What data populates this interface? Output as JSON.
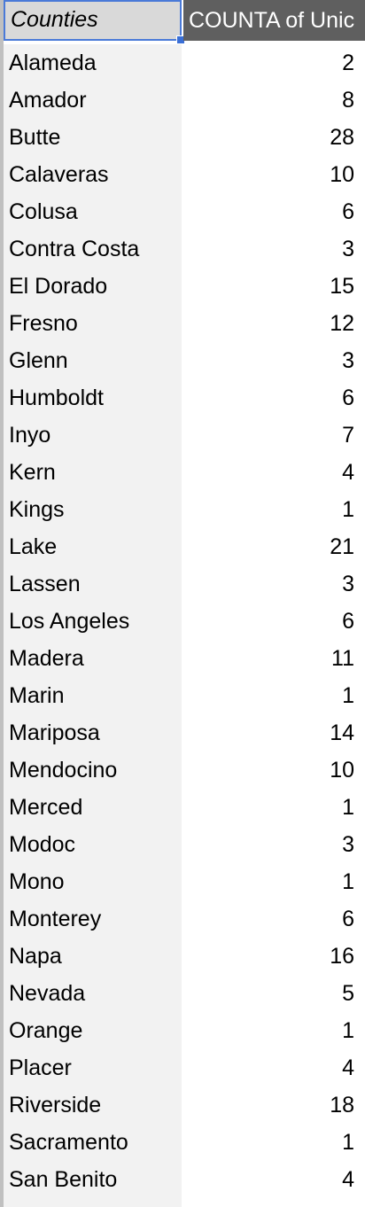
{
  "header": {
    "counties_label": "Counties",
    "count_label": "COUNTA of Unic"
  },
  "rows": [
    {
      "county": "Alameda",
      "count": "2"
    },
    {
      "county": "Amador",
      "count": "8"
    },
    {
      "county": "Butte",
      "count": "28"
    },
    {
      "county": "Calaveras",
      "count": "10"
    },
    {
      "county": "Colusa",
      "count": "6"
    },
    {
      "county": "Contra Costa",
      "count": "3"
    },
    {
      "county": "El Dorado",
      "count": "15"
    },
    {
      "county": "Fresno",
      "count": "12"
    },
    {
      "county": "Glenn",
      "count": "3"
    },
    {
      "county": "Humboldt",
      "count": "6"
    },
    {
      "county": "Inyo",
      "count": "7"
    },
    {
      "county": "Kern",
      "count": "4"
    },
    {
      "county": "Kings",
      "count": "1"
    },
    {
      "county": "Lake",
      "count": "21"
    },
    {
      "county": "Lassen",
      "count": "3"
    },
    {
      "county": "Los Angeles",
      "count": "6"
    },
    {
      "county": "Madera",
      "count": "11"
    },
    {
      "county": "Marin",
      "count": "1"
    },
    {
      "county": "Mariposa",
      "count": "14"
    },
    {
      "county": "Mendocino",
      "count": "10"
    },
    {
      "county": "Merced",
      "count": "1"
    },
    {
      "county": "Modoc",
      "count": "3"
    },
    {
      "county": "Mono",
      "count": "1"
    },
    {
      "county": "Monterey",
      "count": "6"
    },
    {
      "county": "Napa",
      "count": "16"
    },
    {
      "county": "Nevada",
      "count": "5"
    },
    {
      "county": "Orange",
      "count": "1"
    },
    {
      "county": "Placer",
      "count": "4"
    },
    {
      "county": "Riverside",
      "count": "18"
    },
    {
      "county": "Sacramento",
      "count": "1"
    },
    {
      "county": "San Benito",
      "count": "4"
    }
  ]
}
